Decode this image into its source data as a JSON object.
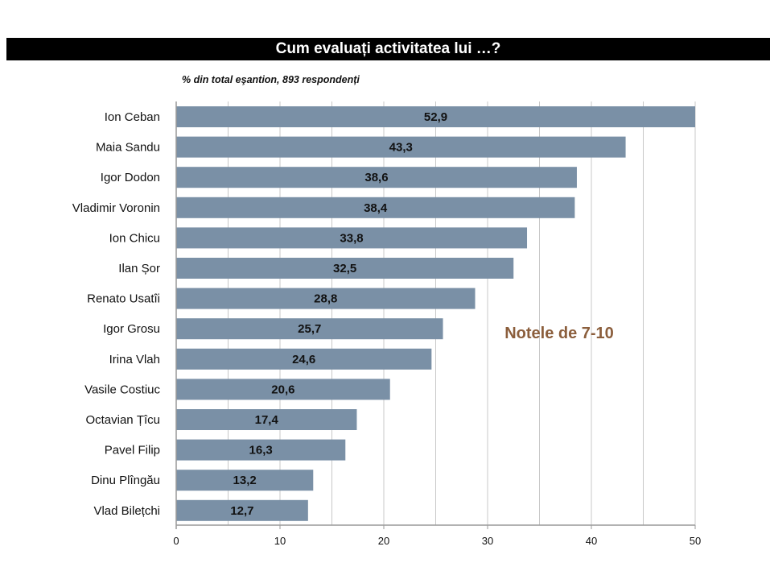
{
  "chart_data": {
    "type": "bar",
    "orientation": "horizontal",
    "title": "Cum evaluați activitatea lui …?",
    "subtitle": "% din total eşantion, 893 respondenți",
    "annotation": "Notele de 7-10",
    "categories": [
      "Ion Ceban",
      "Maia Sandu",
      "Igor Dodon",
      "Vladimir Voronin",
      "Ion Chicu",
      "Ilan Șor",
      "Renato Usatîi",
      "Igor Grosu",
      "Irina Vlah",
      "Vasile Costiuc",
      "Octavian Țîcu",
      "Pavel Filip",
      "Dinu Plîngău",
      "Vlad Bilețchi"
    ],
    "values": [
      52.9,
      43.3,
      38.6,
      38.4,
      33.8,
      32.5,
      28.8,
      25.7,
      24.6,
      20.6,
      17.4,
      16.3,
      13.2,
      12.7
    ],
    "value_labels": [
      "52,9",
      "43,3",
      "38,6",
      "38,4",
      "33,8",
      "32,5",
      "28,8",
      "25,7",
      "24,6",
      "20,6",
      "17,4",
      "16,3",
      "13,2",
      "12,7"
    ],
    "xlim": [
      0,
      50
    ],
    "x_ticks": [
      0,
      10,
      20,
      30,
      40,
      50
    ],
    "gridlines_every": 5,
    "grid": true,
    "xlabel": "",
    "ylabel": "",
    "colors": {
      "bar": "#7a90a6",
      "annotation": "#8b5e3c",
      "grid": "#c8c8c8"
    }
  }
}
